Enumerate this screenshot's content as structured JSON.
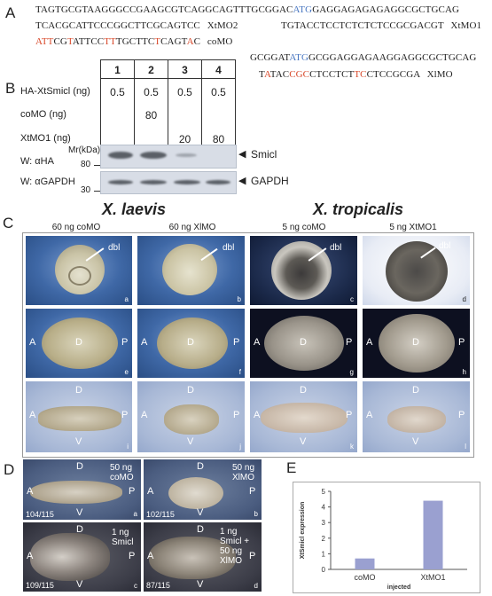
{
  "panel_letters": {
    "a": "A",
    "b": "B",
    "c": "C",
    "d": "D",
    "e": "E"
  },
  "panel_a": {
    "line1": {
      "p1": "TAGTGCGTAAGGGCCGAAGCGTCAGGCAGTTTGCGGAC",
      "atg": "ATG",
      "p2": "GAGGAGAGAGAGGCGCTGCAG"
    },
    "line2": {
      "seq": "TCACGCATTCCCGGCTTCGCAGTCC",
      "label": "XtMO2"
    },
    "line3": {
      "seq": "TGTACCTCCTCTCTCTCCGCGACGT",
      "label": "XtMO1"
    },
    "line4": {
      "s1": "ATT",
      "s2": "CG",
      "s3": "T",
      "s4": "ATTCC",
      "s5": "TT",
      "s6": "TGCTTC",
      "s7": "T",
      "s8": "CAGT",
      "s9": "A",
      "s10": "C",
      "label": "coMO"
    },
    "line5": {
      "p1": "GCGGAT",
      "atg": "ATG",
      "p2": "GCGGAGGAGAAGGAGGCGCTGCAG"
    },
    "line6": {
      "s1": "T",
      "s2": "A",
      "s3": "TAC",
      "s4": "CGC",
      "s5": "CTCCTCT",
      "s6": "TC",
      "s7": "CTCCGCGA",
      "label": "XlMO"
    }
  },
  "panel_b": {
    "lanes": [
      "1",
      "2",
      "3",
      "4"
    ],
    "rows": [
      {
        "label": "HA-XtSmicl (ng)",
        "values": [
          "0.5",
          "0.5",
          "0.5",
          "0.5"
        ]
      },
      {
        "label": "coMO (ng)",
        "values": [
          "",
          "80",
          "",
          ""
        ]
      },
      {
        "label": "XtMO1 (ng)",
        "values": [
          "",
          "",
          "20",
          "80"
        ]
      }
    ],
    "mr_label": "Mr(kDa)",
    "ha_label": "W: αHA",
    "gapdh_label": "W: αGAPDH",
    "marker_80": "80",
    "marker_30": "30",
    "ha_band": "Smicl",
    "gapdh_band": "GAPDH",
    "arrow": "◀"
  },
  "panel_c": {
    "species_left": "X. laevis",
    "species_right": "X. tropicalis",
    "columns": [
      "60 ng coMO",
      "60 ng XlMO",
      "5 ng coMO",
      "5 ng XtMO1"
    ],
    "dbl": "dbl",
    "cell_letters": [
      "a",
      "b",
      "c",
      "d",
      "e",
      "f",
      "g",
      "h",
      "i",
      "j",
      "k",
      "l"
    ],
    "axis": {
      "A": "A",
      "P": "P",
      "D": "D",
      "V": "V"
    }
  },
  "panel_d": {
    "cells": [
      {
        "text1": "50 ng",
        "text2": "coMO",
        "text3": "",
        "count": "104/115",
        "letter": "a"
      },
      {
        "text1": "50 ng",
        "text2": "XlMO",
        "text3": "",
        "count": "102/115",
        "letter": "b"
      },
      {
        "text1": "1 ng",
        "text2": "Smicl",
        "text3": "",
        "count": "109/115",
        "letter": "c"
      },
      {
        "text1": "1 ng",
        "text2": "Smicl +",
        "text3": "50 ng",
        "text4": "XlMO",
        "count": "87/115",
        "letter": "d"
      }
    ]
  },
  "chart_data": {
    "type": "bar",
    "categories": [
      "coMO",
      "XtMO1"
    ],
    "values": [
      0.7,
      4.4
    ],
    "ylabel": "XtSmicl expression",
    "xlabel": "injected",
    "ylim": [
      0,
      5
    ],
    "yticks": [
      "0",
      "1",
      "2",
      "3",
      "4",
      "5"
    ],
    "bar_color": "#9aa0d0"
  }
}
